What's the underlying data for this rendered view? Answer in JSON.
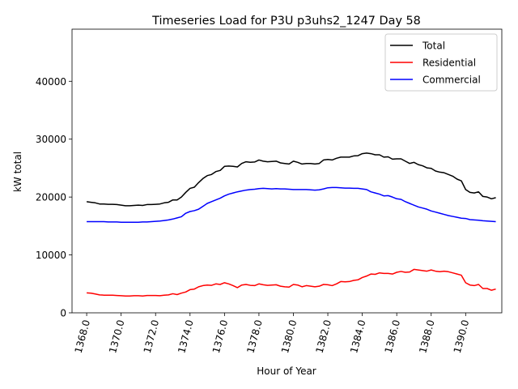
{
  "chart_data": {
    "type": "line",
    "title": "Timeseries Load for P3U p3uhs2_1247  Day 58",
    "xlabel": "Hour of Year",
    "ylabel": "kW total",
    "xlim": [
      1367.15,
      1392.1
    ],
    "ylim": [
      0,
      49000
    ],
    "xticks": [
      1368,
      1370,
      1372,
      1374,
      1376,
      1378,
      1380,
      1382,
      1384,
      1386,
      1388,
      1390
    ],
    "xtick_labels": [
      "1368.0",
      "1370.0",
      "1372.0",
      "1374.0",
      "1376.0",
      "1378.0",
      "1380.0",
      "1382.0",
      "1384.0",
      "1386.0",
      "1388.0",
      "1390.0"
    ],
    "yticks": [
      0,
      10000,
      20000,
      30000,
      40000
    ],
    "ytick_labels": [
      "0",
      "10000",
      "20000",
      "30000",
      "40000"
    ],
    "grid": false,
    "legend_position": "top-right",
    "x": [
      1368.0,
      1368.25,
      1368.5,
      1368.75,
      1369.0,
      1369.25,
      1369.5,
      1369.75,
      1370.0,
      1370.25,
      1370.5,
      1370.75,
      1371.0,
      1371.25,
      1371.5,
      1371.75,
      1372.0,
      1372.25,
      1372.5,
      1372.75,
      1373.0,
      1373.25,
      1373.5,
      1373.75,
      1374.0,
      1374.25,
      1374.5,
      1374.75,
      1375.0,
      1375.25,
      1375.5,
      1375.75,
      1376.0,
      1376.25,
      1376.5,
      1376.75,
      1377.0,
      1377.25,
      1377.5,
      1377.75,
      1378.0,
      1378.25,
      1378.5,
      1378.75,
      1379.0,
      1379.25,
      1379.5,
      1379.75,
      1380.0,
      1380.25,
      1380.5,
      1380.75,
      1381.0,
      1381.25,
      1381.5,
      1381.75,
      1382.0,
      1382.25,
      1382.5,
      1382.75,
      1383.0,
      1383.25,
      1383.5,
      1383.75,
      1384.0,
      1384.25,
      1384.5,
      1384.75,
      1385.0,
      1385.25,
      1385.5,
      1385.75,
      1386.0,
      1386.25,
      1386.5,
      1386.75,
      1387.0,
      1387.25,
      1387.5,
      1387.75,
      1388.0,
      1388.25,
      1388.5,
      1388.75,
      1389.0,
      1389.25,
      1389.5,
      1389.75,
      1390.0,
      1390.25,
      1390.5,
      1390.75,
      1391.0,
      1391.25,
      1391.5,
      1391.75
    ],
    "series": [
      {
        "name": "Total",
        "color": "#000000",
        "values": [
          19200,
          19100,
          19000,
          18800,
          18800,
          18750,
          18750,
          18700,
          18600,
          18500,
          18500,
          18550,
          18600,
          18550,
          18700,
          18700,
          18750,
          18800,
          19000,
          19100,
          19500,
          19500,
          20000,
          20800,
          21500,
          21700,
          22500,
          23200,
          23700,
          23900,
          24400,
          24600,
          25300,
          25350,
          25300,
          25200,
          25800,
          26100,
          26000,
          26050,
          26400,
          26200,
          26100,
          26150,
          26200,
          25900,
          25800,
          25700,
          26200,
          26000,
          25700,
          25800,
          25800,
          25700,
          25800,
          26400,
          26500,
          26400,
          26700,
          26900,
          26900,
          26900,
          27100,
          27150,
          27500,
          27600,
          27500,
          27300,
          27300,
          26900,
          26950,
          26550,
          26600,
          26600,
          26200,
          25800,
          26000,
          25600,
          25400,
          25050,
          24950,
          24500,
          24300,
          24200,
          23900,
          23600,
          23100,
          22800,
          21300,
          20800,
          20700,
          20900,
          20100,
          20000,
          19700,
          19900
        ]
      },
      {
        "name": "Residential",
        "color": "#ff0000",
        "values": [
          3450,
          3400,
          3250,
          3100,
          3050,
          3050,
          3050,
          3000,
          2950,
          2900,
          2900,
          2950,
          2950,
          2900,
          3000,
          3000,
          3000,
          2950,
          3050,
          3100,
          3300,
          3150,
          3400,
          3600,
          4000,
          4100,
          4500,
          4700,
          4800,
          4750,
          5000,
          4900,
          5200,
          5000,
          4700,
          4350,
          4800,
          4900,
          4750,
          4700,
          5000,
          4850,
          4750,
          4800,
          4850,
          4600,
          4500,
          4450,
          4900,
          4800,
          4500,
          4700,
          4600,
          4500,
          4600,
          4900,
          4850,
          4700,
          5000,
          5400,
          5350,
          5400,
          5600,
          5700,
          6100,
          6350,
          6700,
          6650,
          6900,
          6800,
          6800,
          6700,
          7000,
          7150,
          7000,
          7050,
          7500,
          7400,
          7300,
          7200,
          7400,
          7200,
          7100,
          7200,
          7100,
          6900,
          6700,
          6500,
          5200,
          4800,
          4700,
          4900,
          4200,
          4200,
          3900,
          4100
        ]
      },
      {
        "name": "Commercial",
        "color": "#0000ff",
        "values": [
          15750,
          15750,
          15750,
          15750,
          15750,
          15700,
          15700,
          15700,
          15650,
          15650,
          15650,
          15650,
          15650,
          15700,
          15700,
          15750,
          15800,
          15850,
          15950,
          16050,
          16200,
          16400,
          16600,
          17200,
          17500,
          17650,
          17900,
          18400,
          18900,
          19200,
          19500,
          19800,
          20200,
          20500,
          20700,
          20900,
          21050,
          21200,
          21300,
          21350,
          21450,
          21500,
          21450,
          21400,
          21450,
          21400,
          21400,
          21350,
          21300,
          21300,
          21300,
          21300,
          21250,
          21200,
          21250,
          21400,
          21600,
          21650,
          21650,
          21600,
          21550,
          21550,
          21500,
          21500,
          21400,
          21300,
          20900,
          20700,
          20500,
          20200,
          20250,
          20000,
          19700,
          19600,
          19200,
          18900,
          18600,
          18300,
          18100,
          17900,
          17600,
          17400,
          17200,
          17000,
          16800,
          16650,
          16500,
          16350,
          16300,
          16100,
          16050,
          16000,
          15900,
          15850,
          15800,
          15750
        ]
      }
    ]
  }
}
